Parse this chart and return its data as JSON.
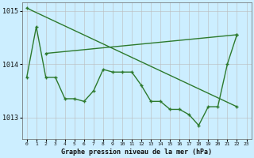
{
  "background_color": "#cceeff",
  "grid_color": "#bbbbbb",
  "line_color": "#2d7a2d",
  "title": "Graphe pression niveau de la mer (hPa)",
  "xlim": [
    -0.5,
    23.5
  ],
  "ylim": [
    1012.6,
    1015.15
  ],
  "yticks": [
    1013,
    1014,
    1015
  ],
  "xticks": [
    0,
    1,
    2,
    3,
    4,
    5,
    6,
    7,
    8,
    9,
    10,
    11,
    12,
    13,
    14,
    15,
    16,
    17,
    18,
    19,
    20,
    21,
    22,
    23
  ],
  "line1_x": [
    0,
    22
  ],
  "line1_y": [
    1015.05,
    1013.2
  ],
  "line2_x": [
    2,
    22
  ],
  "line2_y": [
    1014.2,
    1014.55
  ],
  "line3_x": [
    0,
    1,
    2,
    3,
    4,
    5,
    6,
    7,
    8,
    9,
    10,
    11,
    12,
    13,
    14,
    15,
    16,
    17,
    18,
    19,
    20,
    21,
    22
  ],
  "line3_y": [
    1013.75,
    1014.7,
    1013.75,
    1013.75,
    1013.35,
    1013.35,
    1013.3,
    1013.5,
    1013.9,
    1013.85,
    1013.85,
    1013.85,
    1013.6,
    1013.3,
    1013.3,
    1013.15,
    1013.15,
    1013.05,
    1012.85,
    1013.2,
    1013.2,
    1014.0,
    1014.55
  ]
}
